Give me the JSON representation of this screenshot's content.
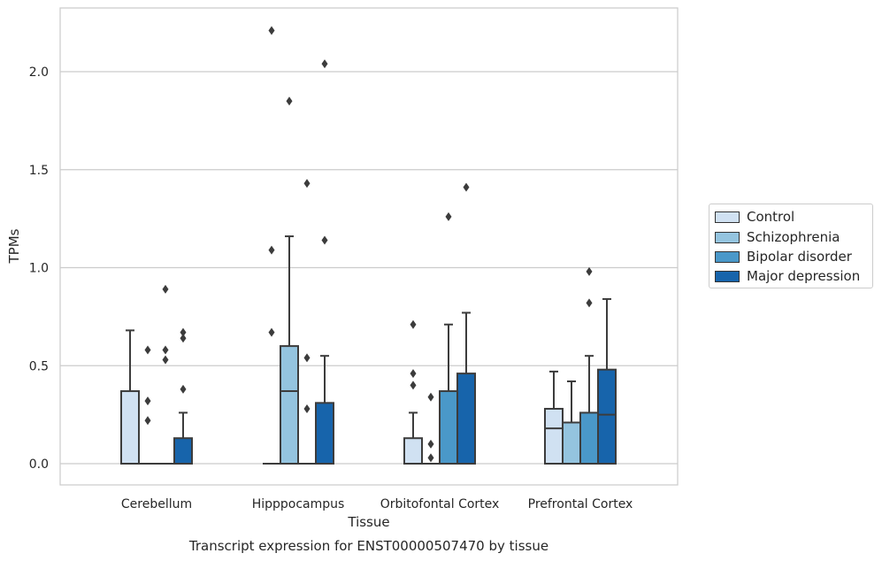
{
  "chart_data": {
    "type": "box",
    "caption": "Transcript expression for ENST00000507470 by tissue",
    "xlabel": "Tissue",
    "ylabel": "TPMs",
    "ylim": [
      -0.1,
      2.35
    ],
    "yticks": [
      0.0,
      0.5,
      1.0,
      1.5,
      2.0
    ],
    "ytick_labels": [
      "0.0",
      "0.5",
      "1.0",
      "1.5",
      "2.0"
    ],
    "grid": true,
    "legend_position": "right",
    "categories": [
      "Cerebellum",
      "Hipppocampus",
      "Orbitofontal Cortex",
      "Prefrontal Cortex"
    ],
    "series": [
      {
        "name": "Control",
        "color": "#d0e1f2",
        "boxes": [
          {
            "q1": 0.0,
            "median": 0.0,
            "q3": 0.37,
            "whisker_low": 0.0,
            "whisker_high": 0.68,
            "outliers": []
          },
          {
            "q1": 0.0,
            "median": 0.0,
            "q3": 0.0,
            "whisker_low": 0.0,
            "whisker_high": 0.0,
            "outliers": [
              0.67,
              1.09,
              2.21
            ]
          },
          {
            "q1": 0.0,
            "median": 0.0,
            "q3": 0.13,
            "whisker_low": 0.0,
            "whisker_high": 0.26,
            "outliers": [
              0.4,
              0.46,
              0.71
            ]
          },
          {
            "q1": 0.0,
            "median": 0.18,
            "q3": 0.28,
            "whisker_low": 0.0,
            "whisker_high": 0.47,
            "outliers": []
          }
        ]
      },
      {
        "name": "Schizophrenia",
        "color": "#94c4df",
        "boxes": [
          {
            "q1": 0.0,
            "median": 0.0,
            "q3": 0.0,
            "whisker_low": 0.0,
            "whisker_high": 0.0,
            "outliers": [
              0.22,
              0.32,
              0.58
            ]
          },
          {
            "q1": 0.0,
            "median": 0.37,
            "q3": 0.6,
            "whisker_low": 0.0,
            "whisker_high": 1.16,
            "outliers": [
              1.85
            ]
          },
          {
            "q1": 0.0,
            "median": 0.0,
            "q3": 0.0,
            "whisker_low": 0.0,
            "whisker_high": 0.0,
            "outliers": [
              0.03,
              0.1,
              0.34
            ]
          },
          {
            "q1": 0.0,
            "median": 0.0,
            "q3": 0.21,
            "whisker_low": 0.0,
            "whisker_high": 0.42,
            "outliers": []
          }
        ]
      },
      {
        "name": "Bipolar disorder",
        "color": "#4a98c9",
        "boxes": [
          {
            "q1": 0.0,
            "median": 0.0,
            "q3": 0.0,
            "whisker_low": 0.0,
            "whisker_high": 0.0,
            "outliers": [
              0.53,
              0.58,
              0.89
            ]
          },
          {
            "q1": 0.0,
            "median": 0.0,
            "q3": 0.0,
            "whisker_low": 0.0,
            "whisker_high": 0.0,
            "outliers": [
              0.28,
              0.54,
              1.43
            ]
          },
          {
            "q1": 0.0,
            "median": 0.0,
            "q3": 0.37,
            "whisker_low": 0.0,
            "whisker_high": 0.71,
            "outliers": [
              1.26
            ]
          },
          {
            "q1": 0.0,
            "median": 0.0,
            "q3": 0.26,
            "whisker_low": 0.0,
            "whisker_high": 0.55,
            "outliers": [
              0.82,
              0.98
            ]
          }
        ]
      },
      {
        "name": "Major depression",
        "color": "#1764ab",
        "boxes": [
          {
            "q1": 0.0,
            "median": 0.0,
            "q3": 0.13,
            "whisker_low": 0.0,
            "whisker_high": 0.26,
            "outliers": [
              0.38,
              0.64,
              0.67
            ]
          },
          {
            "q1": 0.0,
            "median": 0.0,
            "q3": 0.31,
            "whisker_low": 0.0,
            "whisker_high": 0.55,
            "outliers": [
              1.14,
              2.04
            ]
          },
          {
            "q1": 0.0,
            "median": 0.0,
            "q3": 0.46,
            "whisker_low": 0.0,
            "whisker_high": 0.77,
            "outliers": [
              1.41
            ]
          },
          {
            "q1": 0.0,
            "median": 0.25,
            "q3": 0.48,
            "whisker_low": 0.0,
            "whisker_high": 0.84,
            "outliers": []
          }
        ]
      }
    ]
  }
}
